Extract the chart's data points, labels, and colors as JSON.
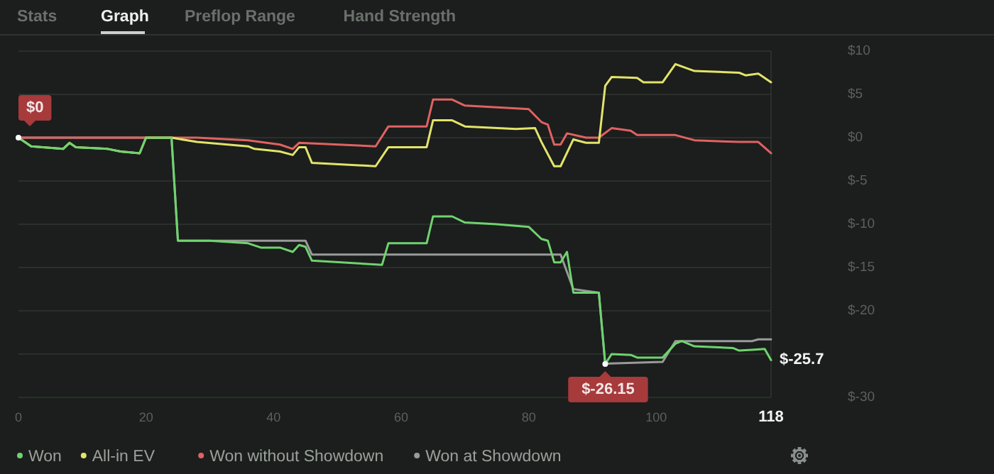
{
  "chart_data": {
    "type": "line",
    "xlim": [
      0,
      118
    ],
    "xticks": [
      0,
      20,
      40,
      60,
      80,
      100,
      118
    ],
    "ylim": [
      -30,
      10
    ],
    "yticks": [
      {
        "value": 10,
        "label": "$10"
      },
      {
        "value": 5,
        "label": "$5"
      },
      {
        "value": 0,
        "label": "$0"
      },
      {
        "value": -5,
        "label": "$-5"
      },
      {
        "value": -10,
        "label": "$-10"
      },
      {
        "value": -15,
        "label": "$-15"
      },
      {
        "value": -20,
        "label": "$-20"
      },
      {
        "value": -25,
        "label": null
      },
      {
        "value": -30,
        "label": "$-30"
      }
    ],
    "grid": "y",
    "legend": "bottom",
    "marker": "none",
    "line_style": "solid",
    "series": [
      {
        "name": "Won at Showdown",
        "color": "#9a9a9a",
        "x": [
          0,
          24,
          25,
          45,
          46,
          85,
          87,
          91,
          92,
          101,
          103,
          115,
          116,
          118
        ],
        "values": [
          0,
          0,
          -11.9,
          -11.9,
          -13.5,
          -13.5,
          -17.5,
          -17.9,
          -26.1,
          -25.9,
          -23.5,
          -23.5,
          -23.3,
          -23.3
        ]
      },
      {
        "name": "Won without Showdown",
        "color": "#e06262",
        "x": [
          0,
          24,
          28,
          36,
          41,
          43,
          44,
          56,
          58,
          64,
          65,
          68,
          70,
          80,
          82,
          83,
          84,
          85,
          86,
          89,
          91,
          93,
          96,
          97,
          103,
          106,
          113,
          116,
          118
        ],
        "values": [
          0,
          0,
          0,
          -0.3,
          -0.8,
          -1.3,
          -0.6,
          -1,
          1.3,
          1.3,
          4.4,
          4.4,
          3.7,
          3.3,
          1.8,
          1.5,
          -0.8,
          -0.8,
          0.5,
          0,
          0,
          1.1,
          0.8,
          0.3,
          0.3,
          -0.3,
          -0.5,
          -0.5,
          -1.8
        ]
      },
      {
        "name": "All-in EV",
        "color": "#e3e36a",
        "x": [
          0,
          2,
          7,
          8,
          9,
          14,
          16,
          19,
          20,
          24,
          28,
          36,
          37,
          41,
          43,
          44,
          45,
          46,
          56,
          58,
          64,
          65,
          68,
          70,
          78,
          81,
          82,
          84,
          85,
          87,
          89,
          91,
          92,
          93,
          97,
          98,
          101,
          103,
          106,
          113,
          114,
          116,
          118
        ],
        "values": [
          0,
          -1,
          -1.3,
          -0.6,
          -1.1,
          -1.3,
          -1.6,
          -1.8,
          0,
          0,
          -0.5,
          -1,
          -1.3,
          -1.6,
          -2,
          -1.1,
          -1.1,
          -2.9,
          -3.3,
          -1.1,
          -1.1,
          2,
          2,
          1.3,
          1,
          1.1,
          -0.5,
          -3.3,
          -3.3,
          -0.2,
          -0.6,
          -0.6,
          6,
          7,
          6.9,
          6.4,
          6.4,
          8.5,
          7.7,
          7.5,
          7.2,
          7.4,
          6.4
        ]
      },
      {
        "name": "Won",
        "color": "#6fd36f",
        "x": [
          0,
          2,
          7,
          8,
          9,
          14,
          16,
          19,
          20,
          24,
          25,
          30,
          36,
          38,
          41,
          43,
          44,
          45,
          46,
          57,
          58,
          64,
          65,
          68,
          70,
          75,
          80,
          82,
          83,
          84,
          85,
          86,
          87,
          91,
          92,
          93,
          96,
          97,
          101,
          103,
          104,
          106,
          112,
          113,
          115,
          117,
          118
        ],
        "value_labels": [
          null,
          null,
          null,
          null,
          null,
          null,
          null,
          null,
          null,
          null,
          null,
          null,
          null,
          null,
          null,
          null,
          null,
          null,
          null,
          null,
          null,
          null,
          null,
          null,
          null,
          null,
          null,
          null,
          null,
          null,
          null,
          null,
          null,
          null,
          null,
          null,
          null,
          null,
          null,
          null,
          null,
          null,
          null,
          null,
          null,
          null,
          "$-25.7"
        ],
        "values": [
          0,
          -1,
          -1.3,
          -0.6,
          -1.1,
          -1.3,
          -1.6,
          -1.8,
          0,
          0,
          -11.9,
          -11.9,
          -12.2,
          -12.7,
          -12.7,
          -13.2,
          -12.4,
          -12.6,
          -14.2,
          -14.7,
          -12.2,
          -12.2,
          -9.1,
          -9.1,
          -9.8,
          -10,
          -10.3,
          -11.7,
          -11.9,
          -14.4,
          -14.4,
          -13.2,
          -17.9,
          -17.9,
          -26.15,
          -25,
          -25.1,
          -25.4,
          -25.4,
          -23.8,
          -23.5,
          -24.1,
          -24.3,
          -24.6,
          -24.5,
          -24.4,
          -25.7
        ]
      }
    ],
    "annotations": [
      "Stats",
      "Graph",
      "Preflop Range",
      "Hand Strength",
      {
        "text": "$0",
        "x": 0,
        "y": 0
      },
      {
        "text": "$-26.15",
        "x": 92,
        "y": -26.15
      }
    ]
  }
}
